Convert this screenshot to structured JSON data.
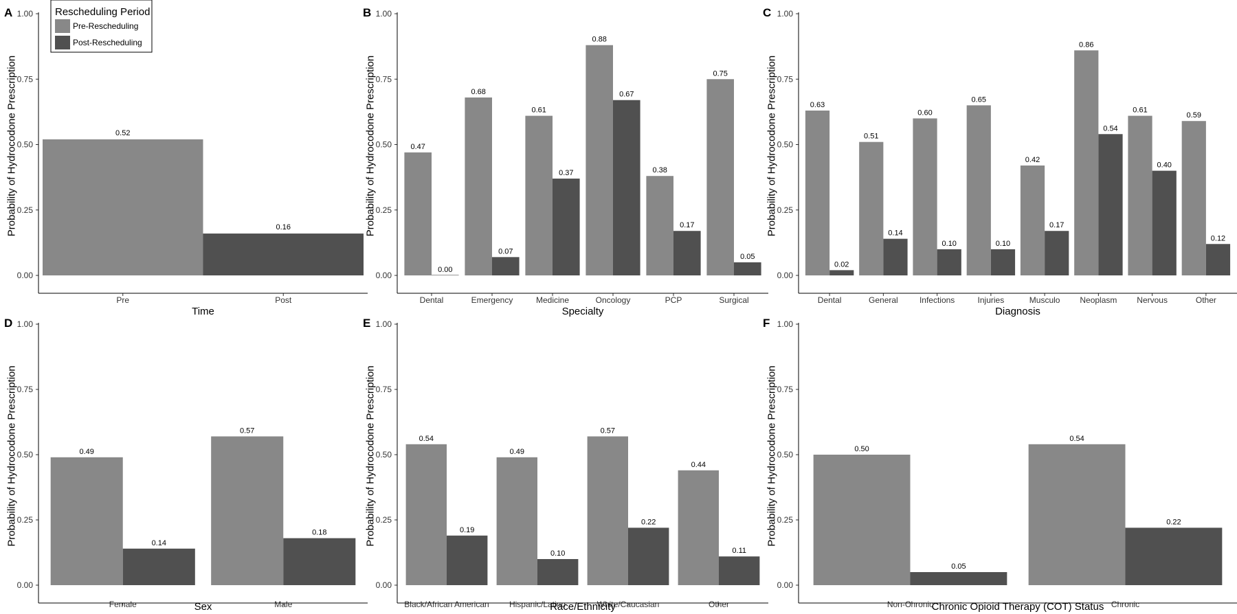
{
  "legend": {
    "title": "Rescheduling Period",
    "position": "top-left of panel A",
    "items": [
      {
        "label": "Pre-Rescheduling",
        "color": "#888888"
      },
      {
        "label": "Post-Rescheduling",
        "color": "#505050"
      }
    ]
  },
  "chart_data": [
    {
      "panel": "A",
      "type": "bar",
      "xlabel": "Time",
      "ylabel": "Probability of Hydrocodone Prescription",
      "ylim": [
        0,
        1
      ],
      "yticks": [
        "0.00",
        "0.25",
        "0.50",
        "0.75",
        "1.00"
      ],
      "mode": "single",
      "categories": [
        "Pre",
        "Post"
      ],
      "values": [
        0.52,
        0.16
      ],
      "labels": [
        "0.52",
        "0.16"
      ],
      "colors": [
        "#888888",
        "#505050"
      ]
    },
    {
      "panel": "B",
      "type": "bar",
      "xlabel": "Specialty",
      "ylabel": "Probability of Hydrocodone Prescription",
      "ylim": [
        0,
        1
      ],
      "yticks": [
        "0.00",
        "0.25",
        "0.50",
        "0.75",
        "1.00"
      ],
      "mode": "grouped",
      "categories": [
        "Dental",
        "Emergency",
        "Medicine",
        "Oncology",
        "PCP",
        "Surgical"
      ],
      "series": [
        {
          "name": "Pre-Rescheduling",
          "color": "#888888",
          "values": [
            0.47,
            0.68,
            0.61,
            0.88,
            0.38,
            0.75
          ],
          "labels": [
            "0.47",
            "0.68",
            "0.61",
            "0.88",
            "0.38",
            "0.75"
          ]
        },
        {
          "name": "Post-Rescheduling",
          "color": "#505050",
          "values": [
            0.0,
            0.07,
            0.37,
            0.67,
            0.17,
            0.05
          ],
          "labels": [
            "0.00",
            "0.07",
            "0.37",
            "0.67",
            "0.17",
            "0.05"
          ]
        }
      ]
    },
    {
      "panel": "C",
      "type": "bar",
      "xlabel": "Diagnosis",
      "ylabel": "Probability of Hydrocodone Prescription",
      "ylim": [
        0,
        1
      ],
      "yticks": [
        "0.00",
        "0.25",
        "0.50",
        "0.75",
        "1.00"
      ],
      "mode": "grouped",
      "categories": [
        "Dental",
        "General",
        "Infections",
        "Injuries",
        "Musculo",
        "Neoplasm",
        "Nervous",
        "Other"
      ],
      "series": [
        {
          "name": "Pre-Rescheduling",
          "color": "#888888",
          "values": [
            0.63,
            0.51,
            0.6,
            0.65,
            0.42,
            0.86,
            0.61,
            0.59
          ],
          "labels": [
            "0.63",
            "0.51",
            "0.60",
            "0.65",
            "0.42",
            "0.86",
            "0.61",
            "0.59"
          ]
        },
        {
          "name": "Post-Rescheduling",
          "color": "#505050",
          "values": [
            0.02,
            0.14,
            0.1,
            0.1,
            0.17,
            0.54,
            0.4,
            0.12
          ],
          "labels": [
            "0.02",
            "0.14",
            "0.10",
            "0.10",
            "0.17",
            "0.54",
            "0.40",
            "0.12"
          ]
        }
      ]
    },
    {
      "panel": "D",
      "type": "bar",
      "xlabel": "Sex",
      "ylabel": "Probability of Hydrocodone Prescription",
      "ylim": [
        0,
        1
      ],
      "yticks": [
        "0.00",
        "0.25",
        "0.50",
        "0.75",
        "1.00"
      ],
      "mode": "grouped",
      "categories": [
        "Female",
        "Male"
      ],
      "series": [
        {
          "name": "Pre-Rescheduling",
          "color": "#888888",
          "values": [
            0.49,
            0.57
          ],
          "labels": [
            "0.49",
            "0.57"
          ]
        },
        {
          "name": "Post-Rescheduling",
          "color": "#505050",
          "values": [
            0.14,
            0.18
          ],
          "labels": [
            "0.14",
            "0.18"
          ]
        }
      ]
    },
    {
      "panel": "E",
      "type": "bar",
      "xlabel": "Race/Ethnicity",
      "ylabel": "Probability of Hydrocodone Prescription",
      "ylim": [
        0,
        1
      ],
      "yticks": [
        "0.00",
        "0.25",
        "0.50",
        "0.75",
        "1.00"
      ],
      "mode": "grouped",
      "categories": [
        "Black/African American",
        "Hispanic/Latino",
        "White/Caucasian",
        "Other"
      ],
      "series": [
        {
          "name": "Pre-Rescheduling",
          "color": "#888888",
          "values": [
            0.54,
            0.49,
            0.57,
            0.44
          ],
          "labels": [
            "0.54",
            "0.49",
            "0.57",
            "0.44"
          ]
        },
        {
          "name": "Post-Rescheduling",
          "color": "#505050",
          "values": [
            0.19,
            0.1,
            0.22,
            0.11
          ],
          "labels": [
            "0.19",
            "0.10",
            "0.22",
            "0.11"
          ]
        }
      ]
    },
    {
      "panel": "F",
      "type": "bar",
      "xlabel": "Chronic Opioid Therapy (COT) Status",
      "ylabel": "Probability of Hydrocodone Prescription",
      "ylim": [
        0,
        1
      ],
      "yticks": [
        "0.00",
        "0.25",
        "0.50",
        "0.75",
        "1.00"
      ],
      "mode": "grouped",
      "categories": [
        "Non-Chronic",
        "Chronic"
      ],
      "series": [
        {
          "name": "Pre-Rescheduling",
          "color": "#888888",
          "values": [
            0.5,
            0.54
          ],
          "labels": [
            "0.50",
            "0.54"
          ]
        },
        {
          "name": "Post-Rescheduling",
          "color": "#505050",
          "values": [
            0.05,
            0.22
          ],
          "labels": [
            "0.05",
            "0.22"
          ]
        }
      ]
    }
  ]
}
